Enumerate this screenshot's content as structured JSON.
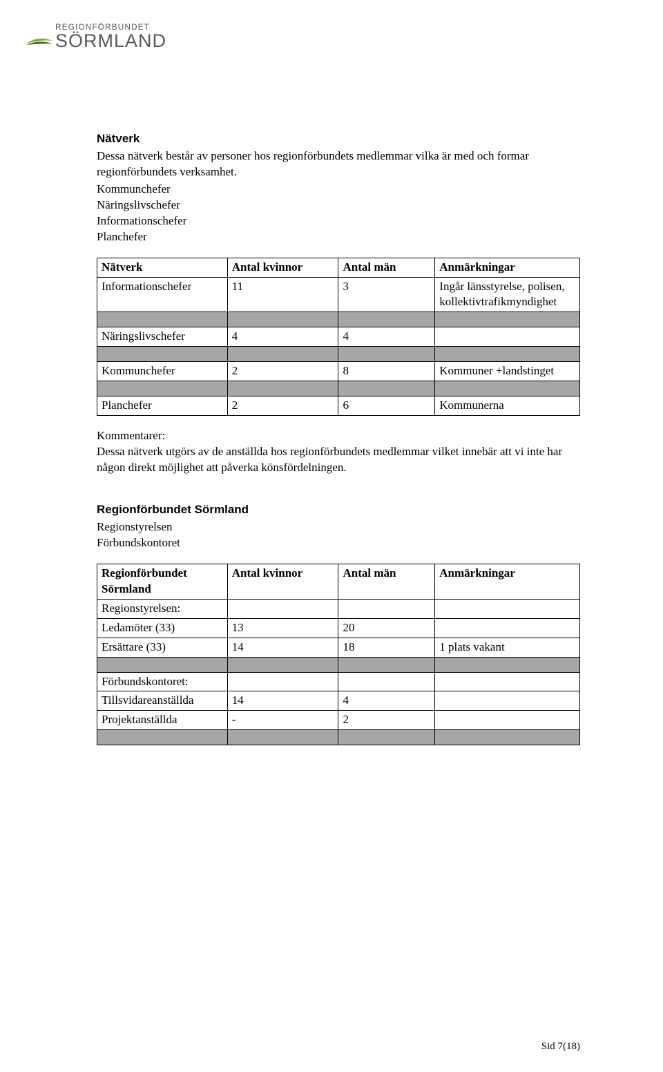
{
  "logo": {
    "top_line": "REGIONFÖRBUNDET",
    "main": "SÖRMLAND",
    "swoosh_color_top": "#7aa23c",
    "swoosh_color_bottom": "#4a6b1f",
    "text_color": "#5a5a58"
  },
  "section1": {
    "heading": "Nätverk",
    "intro": "Dessa nätverk består av personer hos regionförbundets medlemmar vilka är med och formar regionförbundets verksamhet.",
    "items": [
      "Kommunchefer",
      "Näringslivschefer",
      "Informationschefer",
      "Planchefer"
    ],
    "table": {
      "columns": [
        "Nätverk",
        "Antal kvinnor",
        "Antal män",
        "Anmärkningar"
      ],
      "col_widths": [
        "27%",
        "23%",
        "20%",
        "30%"
      ],
      "rows": [
        {
          "cells": [
            "Informationschefer",
            "11",
            "3",
            "Ingår länsstyrelse, polisen, kollektivtrafikmyndighet"
          ],
          "spacer": false
        },
        {
          "cells": [
            "",
            "",
            "",
            ""
          ],
          "spacer": true
        },
        {
          "cells": [
            "Näringslivschefer",
            "4",
            "4",
            ""
          ],
          "spacer": false
        },
        {
          "cells": [
            "",
            "",
            "",
            ""
          ],
          "spacer": true
        },
        {
          "cells": [
            "Kommunchefer",
            "2",
            "8",
            "Kommuner +landstinget"
          ],
          "spacer": false
        },
        {
          "cells": [
            "",
            "",
            "",
            ""
          ],
          "spacer": true
        },
        {
          "cells": [
            "Planchefer",
            "2",
            "6",
            "Kommunerna"
          ],
          "spacer": false
        }
      ]
    },
    "comments_label": "Kommentarer:",
    "comments_text": "Dessa nätverk utgörs av de anställda hos regionförbundets medlemmar vilket innebär att vi inte har någon direkt möjlighet att påverka könsfördelningen."
  },
  "section2": {
    "heading": "Regionförbundet Sörmland",
    "items": [
      "Regionstyrelsen",
      "Förbundskontoret"
    ],
    "table": {
      "header_row1": "Regionförbundet Sörmland",
      "columns": [
        "",
        "Antal kvinnor",
        "Antal män",
        "Anmärkningar"
      ],
      "col_widths": [
        "27%",
        "23%",
        "20%",
        "30%"
      ],
      "rows": [
        {
          "cells": [
            "Regionstyrelsen:",
            "",
            "",
            ""
          ],
          "spacer": false
        },
        {
          "cells": [
            "Ledamöter (33)",
            "13",
            "20",
            ""
          ],
          "spacer": false
        },
        {
          "cells": [
            "Ersättare (33)",
            "14",
            "18",
            "1 plats vakant"
          ],
          "spacer": false
        },
        {
          "cells": [
            "",
            "",
            "",
            ""
          ],
          "spacer": true
        },
        {
          "cells": [
            "Förbundskontoret:",
            "",
            "",
            ""
          ],
          "spacer": false
        },
        {
          "cells": [
            "Tillsvidareanställda",
            "14",
            "4",
            ""
          ],
          "spacer": false
        },
        {
          "cells": [
            "Projektanställda",
            "-",
            "2",
            ""
          ],
          "spacer": false
        },
        {
          "cells": [
            "",
            "",
            "",
            ""
          ],
          "spacer": true
        }
      ]
    }
  },
  "footer": "Sid 7(18)",
  "colors": {
    "spacer_bg": "#a6a6a6",
    "border": "#000000",
    "text": "#000000",
    "background": "#ffffff"
  }
}
